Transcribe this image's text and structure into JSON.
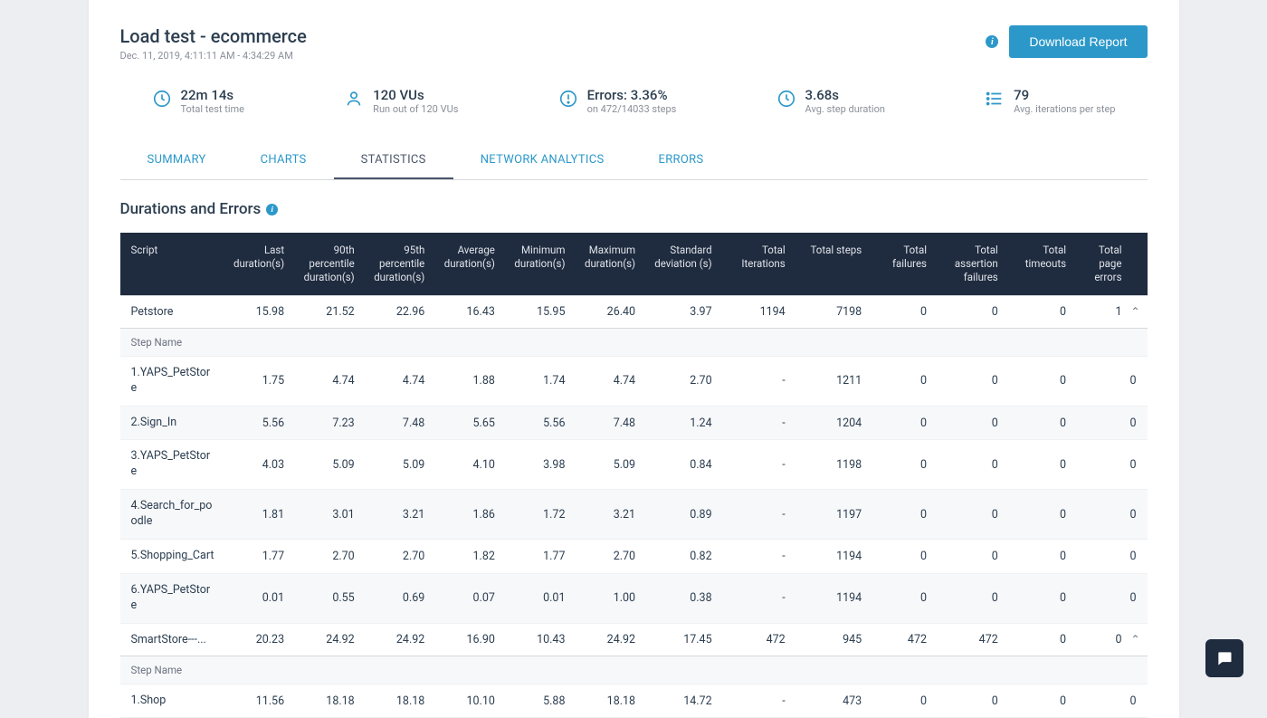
{
  "colors": {
    "accent": "#2c98c9",
    "tableHeaderBg": "#1f2b3e",
    "pageBg": "#eceef1",
    "border": "#d5d8dc"
  },
  "header": {
    "title": "Load test - ecommerce",
    "subtitle": "Dec. 11, 2019, 4:11:11 AM - 4:34:29 AM",
    "downloadLabel": "Download Report"
  },
  "metrics": [
    {
      "icon": "clock",
      "main": "22m 14s",
      "sub": "Total test time"
    },
    {
      "icon": "user",
      "main": "120 VUs",
      "sub": "Run out of 120 VUs"
    },
    {
      "icon": "alert",
      "main": "Errors: 3.36%",
      "sub": "on 472/14033 steps"
    },
    {
      "icon": "clock",
      "main": "3.68s",
      "sub": "Avg. step duration"
    },
    {
      "icon": "list",
      "main": "79",
      "sub": "Avg. iterations per step"
    }
  ],
  "tabs": [
    "SUMMARY",
    "CHARTS",
    "STATISTICS",
    "NETWORK ANALYTICS",
    "ERRORS"
  ],
  "activeTab": 2,
  "sectionTitle": "Durations and Errors",
  "stepHeaderLabel": "Step Name",
  "columns": [
    "Script",
    "Last duration(s)",
    "90th percentile duration(s)",
    "95th percentile duration(s)",
    "Average duration(s)",
    "Minimum duration(s)",
    "Maximum duration(s)",
    "Standard deviation (s)",
    "Total Iterations",
    "Total steps",
    "Total failures",
    "Total assertion failures",
    "Total timeouts",
    "Total page errors"
  ],
  "scripts": [
    {
      "name": "Petstore",
      "values": [
        "15.98",
        "21.52",
        "22.96",
        "16.43",
        "15.95",
        "26.40",
        "3.97",
        "1194",
        "7198",
        "0",
        "0",
        "0",
        "1"
      ],
      "steps": [
        {
          "name": "1.YAPS_PetStore",
          "values": [
            "1.75",
            "4.74",
            "4.74",
            "1.88",
            "1.74",
            "4.74",
            "2.70",
            "-",
            "1211",
            "0",
            "0",
            "0",
            "0"
          ]
        },
        {
          "name": "2.Sign_In",
          "values": [
            "5.56",
            "7.23",
            "7.48",
            "5.65",
            "5.56",
            "7.48",
            "1.24",
            "-",
            "1204",
            "0",
            "0",
            "0",
            "0"
          ]
        },
        {
          "name": "3.YAPS_PetStore",
          "values": [
            "4.03",
            "5.09",
            "5.09",
            "4.10",
            "3.98",
            "5.09",
            "0.84",
            "-",
            "1198",
            "0",
            "0",
            "0",
            "0"
          ]
        },
        {
          "name": "4.Search_for_poodle",
          "values": [
            "1.81",
            "3.01",
            "3.21",
            "1.86",
            "1.72",
            "3.21",
            "0.89",
            "-",
            "1197",
            "0",
            "0",
            "0",
            "0"
          ]
        },
        {
          "name": "5.Shopping_Cart",
          "values": [
            "1.77",
            "2.70",
            "2.70",
            "1.82",
            "1.77",
            "2.70",
            "0.82",
            "-",
            "1194",
            "0",
            "0",
            "0",
            "0"
          ]
        },
        {
          "name": "6.YAPS_PetStore",
          "values": [
            "0.01",
            "0.55",
            "0.69",
            "0.07",
            "0.01",
            "1.00",
            "0.38",
            "-",
            "1194",
            "0",
            "0",
            "0",
            "0"
          ]
        }
      ]
    },
    {
      "name": "SmartStore---...",
      "values": [
        "20.23",
        "24.92",
        "24.92",
        "16.90",
        "10.43",
        "24.92",
        "17.45",
        "472",
        "945",
        "472",
        "472",
        "0",
        "0"
      ],
      "steps": [
        {
          "name": "1.Shop",
          "values": [
            "11.56",
            "18.18",
            "18.18",
            "10.10",
            "5.88",
            "18.18",
            "14.72",
            "-",
            "473",
            "0",
            "0",
            "0",
            "0"
          ]
        }
      ]
    }
  ]
}
